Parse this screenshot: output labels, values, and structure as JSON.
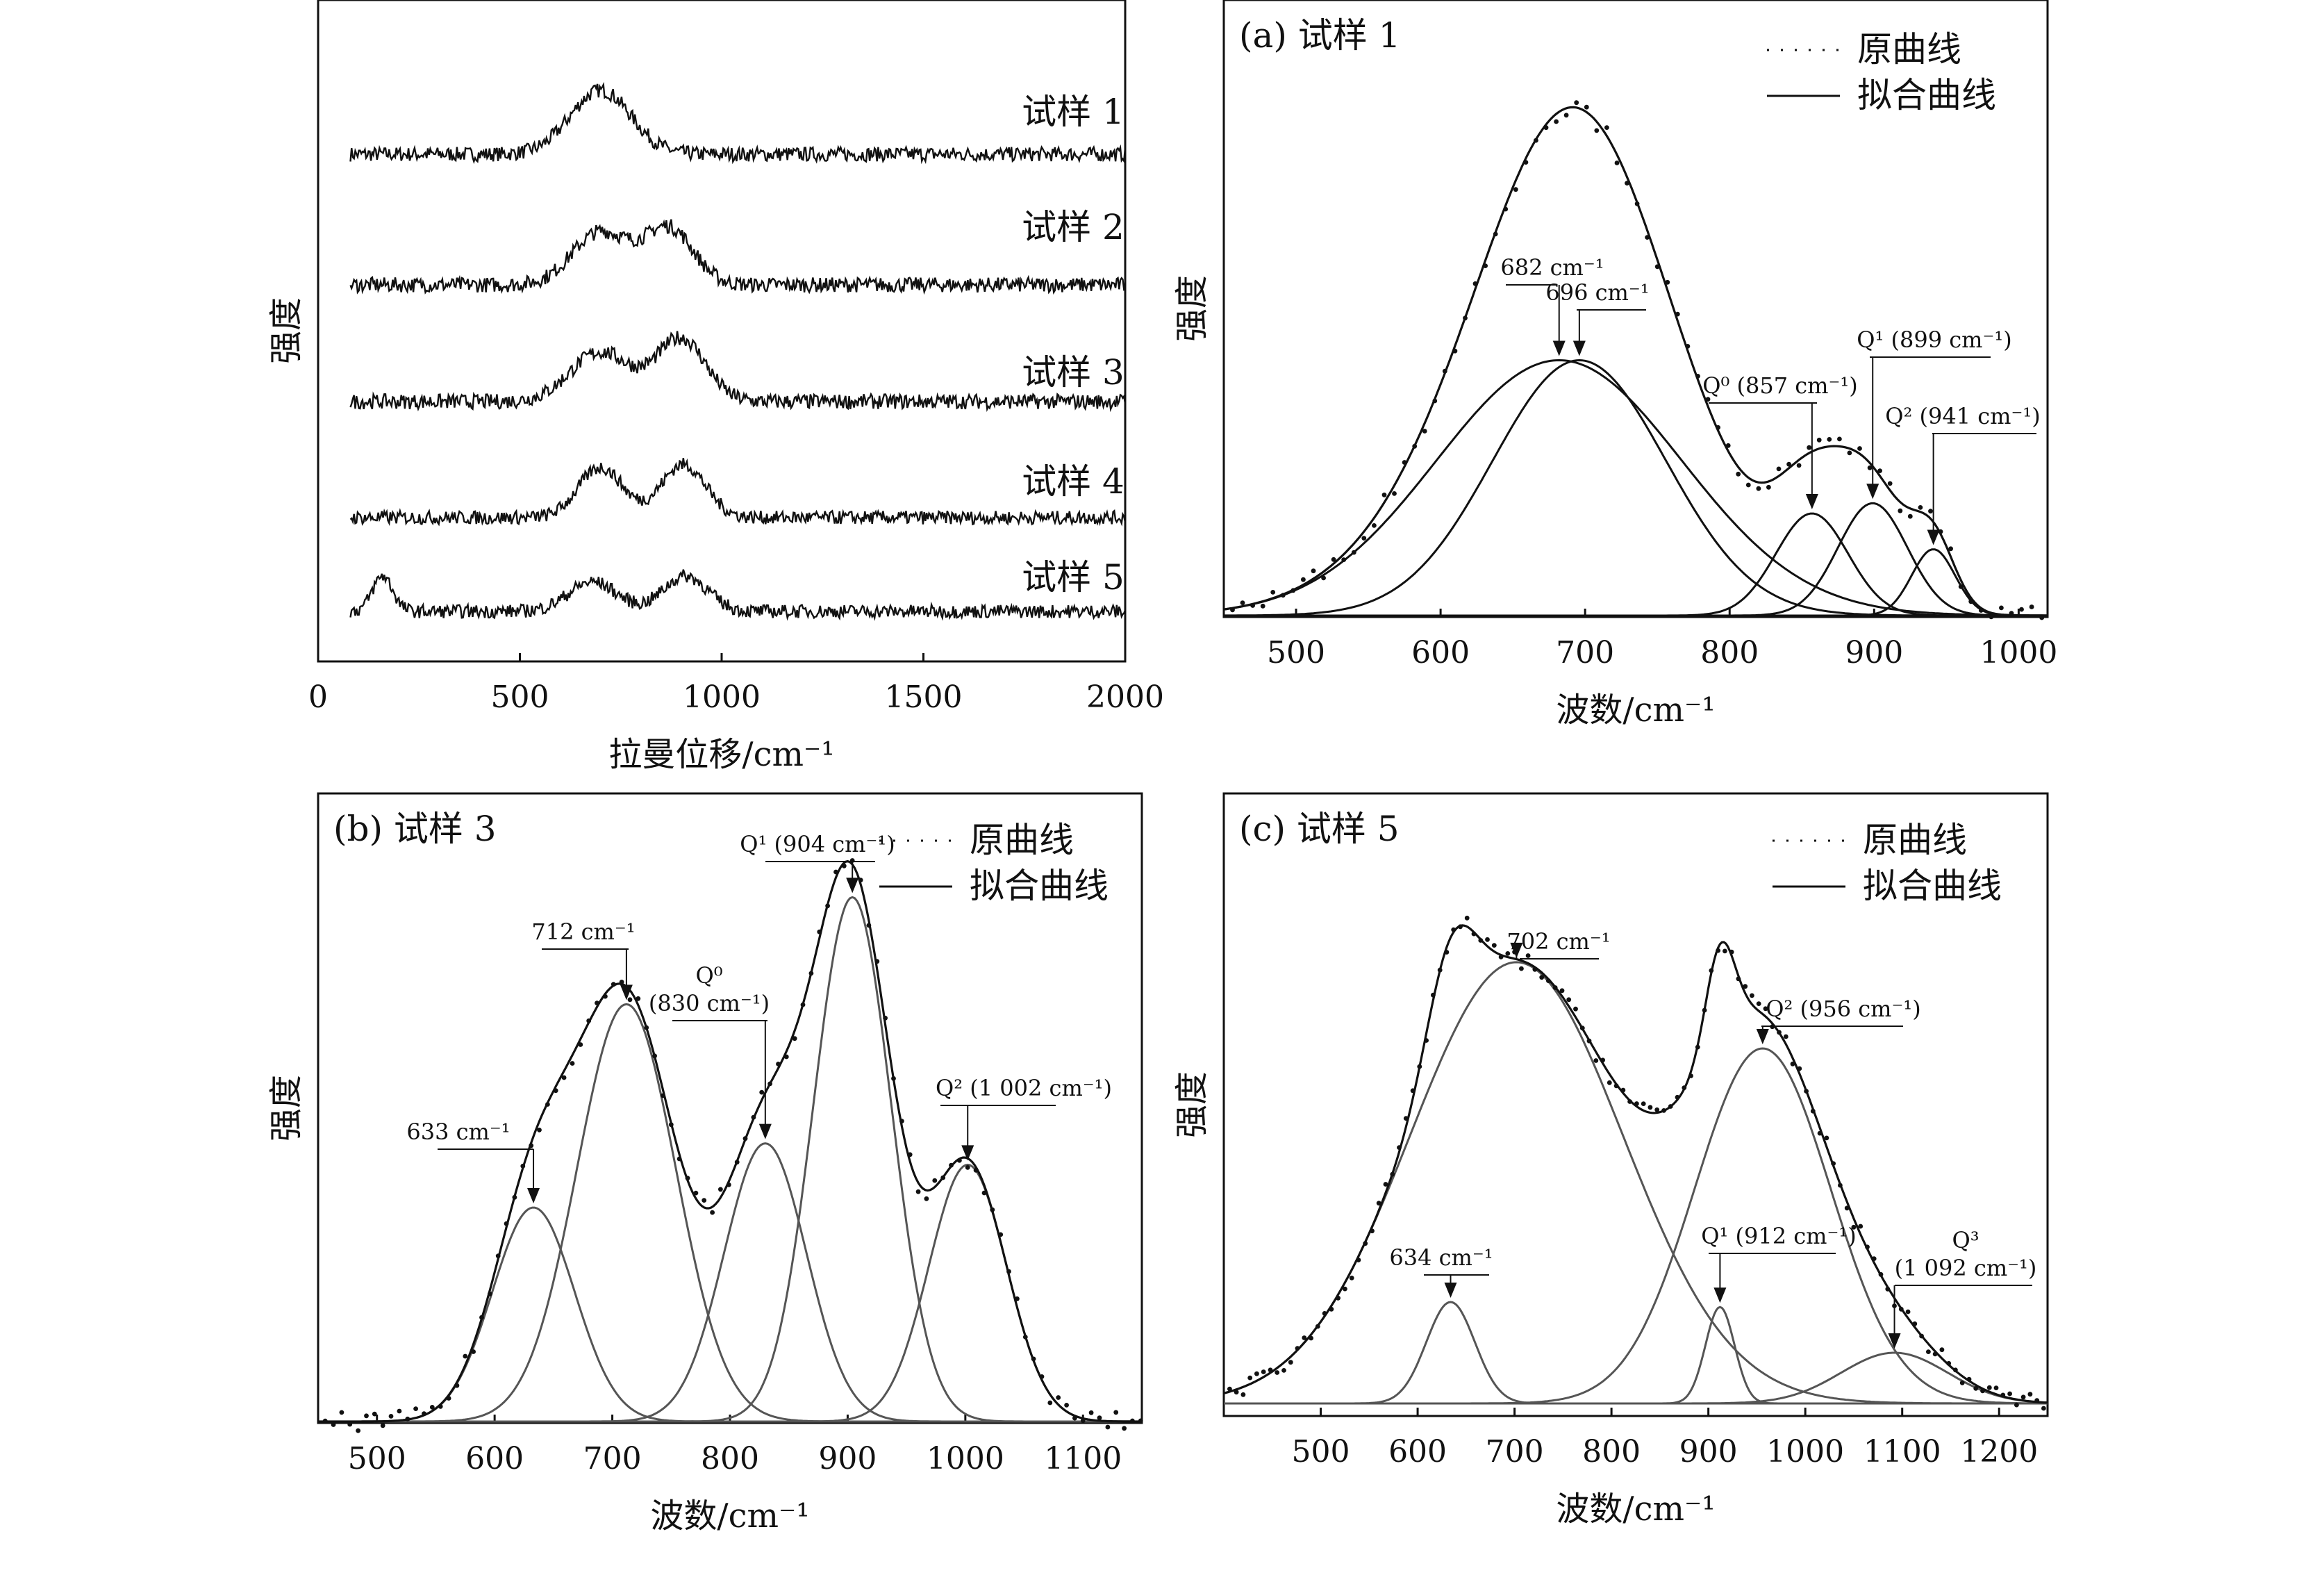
{
  "chart_data": [
    {
      "type": "line",
      "panel": "top-left",
      "title": "",
      "xlabel": "拉曼位移/cm⁻¹",
      "ylabel": "强度",
      "xlim": [
        0,
        2000
      ],
      "xticks": [
        "0",
        "500",
        "1000",
        "1500",
        "2000"
      ],
      "grid": false,
      "series": [
        {
          "name": "试样 1",
          "peaks": [
            {
              "center": 700,
              "height": 1.0,
              "width": 75
            }
          ]
        },
        {
          "name": "试样 2",
          "peaks": [
            {
              "center": 700,
              "height": 0.8,
              "width": 70
            },
            {
              "center": 870,
              "height": 0.85,
              "width": 60
            }
          ]
        },
        {
          "name": "试样 3",
          "peaks": [
            {
              "center": 700,
              "height": 0.75,
              "width": 75
            },
            {
              "center": 900,
              "height": 0.95,
              "width": 60
            }
          ]
        },
        {
          "name": "试样 4",
          "peaks": [
            {
              "center": 700,
              "height": 0.85,
              "width": 55
            },
            {
              "center": 905,
              "height": 0.9,
              "width": 55
            }
          ]
        },
        {
          "name": "试样 5",
          "peaks": [
            {
              "center": 160,
              "height": 0.6,
              "width": 25
            },
            {
              "center": 680,
              "height": 0.5,
              "width": 60
            },
            {
              "center": 910,
              "height": 0.6,
              "width": 55
            }
          ]
        }
      ]
    },
    {
      "type": "line",
      "panel": "a",
      "title": "(a) 试样 1",
      "xlabel": "波数/cm⁻¹",
      "ylabel": "强度",
      "xlim": [
        450,
        1020
      ],
      "xticks": [
        "500",
        "600",
        "700",
        "800",
        "900",
        "1000"
      ],
      "legend": {
        "position": "top-right",
        "original": "原曲线",
        "fit": "拟合曲线"
      },
      "grid": false,
      "components": [
        {
          "center": 682,
          "height": 0.5,
          "width": 85,
          "label": "682 cm⁻¹"
        },
        {
          "center": 696,
          "height": 0.5,
          "width": 60,
          "label": "696 cm⁻¹"
        },
        {
          "center": 857,
          "height": 0.2,
          "width": 25,
          "label": "Q⁰ (857 cm⁻¹)"
        },
        {
          "center": 899,
          "height": 0.22,
          "width": 24,
          "label": "Q¹ (899 cm⁻¹)"
        },
        {
          "center": 941,
          "height": 0.13,
          "width": 15,
          "label": "Q² (941 cm⁻¹)"
        }
      ]
    },
    {
      "type": "line",
      "panel": "b",
      "title": "(b) 试样 3",
      "xlabel": "波数/cm⁻¹",
      "ylabel": "强度",
      "xlim": [
        450,
        1150
      ],
      "xticks": [
        "500",
        "600",
        "700",
        "800",
        "900",
        "1000",
        "1100"
      ],
      "legend": {
        "position": "top-right",
        "original": "原曲线",
        "fit": "拟合曲线"
      },
      "grid": false,
      "components": [
        {
          "center": 633,
          "height": 0.4,
          "width": 35,
          "label": "633 cm⁻¹"
        },
        {
          "center": 712,
          "height": 0.78,
          "width": 42,
          "label": "712 cm⁻¹"
        },
        {
          "center": 830,
          "height": 0.52,
          "width": 35,
          "label": "Q⁰\n(830 cm⁻¹)"
        },
        {
          "center": 904,
          "height": 0.98,
          "width": 33,
          "label": "Q¹ (904 cm⁻¹)"
        },
        {
          "center": 1002,
          "height": 0.48,
          "width": 33,
          "label": "Q² (1 002 cm⁻¹)"
        }
      ]
    },
    {
      "type": "line",
      "panel": "c",
      "title": "(c) 试样 5",
      "xlabel": "波数/cm⁻¹",
      "ylabel": "强度",
      "xlim": [
        400,
        1250
      ],
      "xticks": [
        "500",
        "600",
        "700",
        "800",
        "900",
        "1000",
        "1100",
        "1200"
      ],
      "legend": {
        "position": "top-right",
        "original": "原曲线",
        "fit": "拟合曲线"
      },
      "grid": false,
      "components": [
        {
          "center": 634,
          "height": 0.2,
          "width": 25,
          "label": "634 cm⁻¹"
        },
        {
          "center": 702,
          "height": 0.87,
          "width": 110,
          "label": "702 cm⁻¹"
        },
        {
          "center": 912,
          "height": 0.19,
          "width": 15,
          "label": "Q¹ (912 cm⁻¹)"
        },
        {
          "center": 956,
          "height": 0.7,
          "width": 70,
          "label": "Q² (956 cm⁻¹)"
        },
        {
          "center": 1092,
          "height": 0.1,
          "width": 55,
          "label": "Q³\n(1 092 cm⁻¹)"
        }
      ]
    }
  ]
}
